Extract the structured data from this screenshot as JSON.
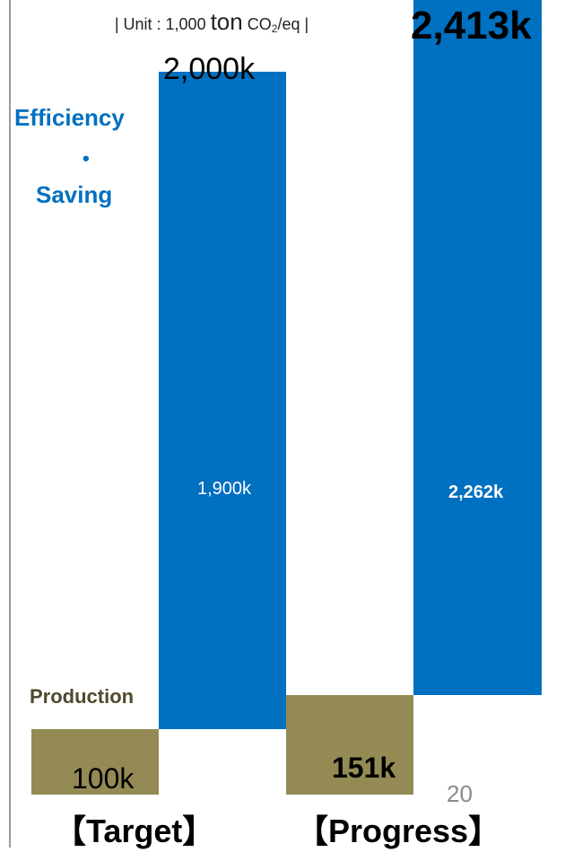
{
  "unit_label": {
    "prefix": "| Unit : 1,000 ",
    "ton": "ton",
    "co": "CO",
    "sub2": "2",
    "suffix": "/eq |"
  },
  "page_number": "20",
  "side_labels": {
    "efficiency": "Efficiency",
    "dot": "•",
    "saving": "Saving",
    "production": "Production"
  },
  "colors": {
    "efficiency": "#0070C0",
    "production": "#948A54"
  },
  "chart_data": {
    "type": "bar",
    "categories": [
      "【Target】",
      "【Progress】"
    ],
    "series": [
      {
        "name": "Production",
        "values": [
          100,
          151
        ]
      },
      {
        "name": "Efficiency · Saving",
        "values": [
          1900,
          2262
        ]
      }
    ],
    "totals": [
      2000,
      2413
    ],
    "value_labels": {
      "production": [
        "100k",
        "151k"
      ],
      "efficiency": [
        "1,900k",
        "2,262k"
      ],
      "totals": [
        "2,000k",
        "2,413k"
      ]
    },
    "unit": "1,000 ton CO2/eq",
    "title": "",
    "xlabel": "",
    "ylabel": ""
  }
}
